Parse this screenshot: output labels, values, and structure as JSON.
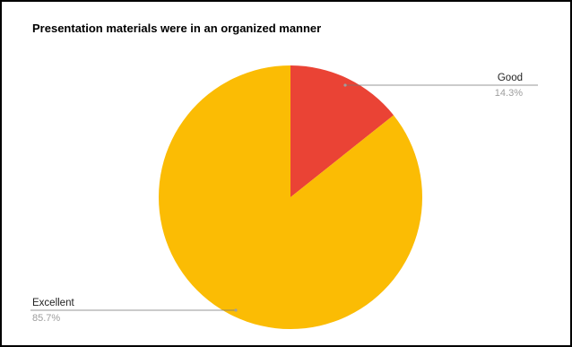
{
  "chart_data": {
    "type": "pie",
    "title": "Presentation materials were in an organized manner",
    "slices": [
      {
        "name": "Good",
        "value": 14.3,
        "label": "14.3%",
        "color": "#EA4335"
      },
      {
        "name": "Excellent",
        "value": 85.7,
        "label": "85.7%",
        "color": "#FBBC04"
      }
    ],
    "start_angle": 0,
    "direction": "clockwise",
    "legend": "none",
    "labels": "outside-with-leader-lines"
  }
}
